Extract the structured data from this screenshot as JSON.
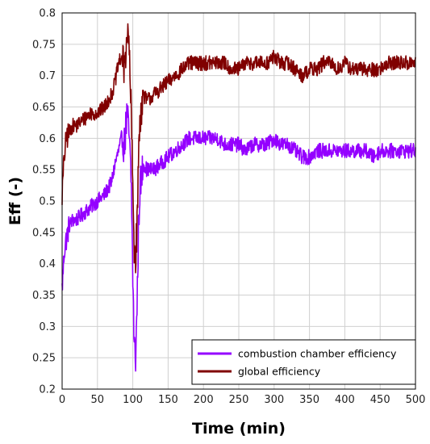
{
  "chart_data": {
    "type": "line",
    "xlabel": "Time (min)",
    "ylabel": "Eff (-)",
    "xlim": [
      0,
      500
    ],
    "ylim": [
      0.2,
      0.8
    ],
    "x_ticks": [
      "0",
      "50",
      "100",
      "150",
      "200",
      "250",
      "300",
      "350",
      "400",
      "450",
      "500"
    ],
    "y_ticks": [
      "0.2",
      "0.25",
      "0.3",
      "0.35",
      "0.4",
      "0.45",
      "0.5",
      "0.55",
      "0.6",
      "0.65",
      "0.7",
      "0.75",
      "0.8"
    ],
    "grid": true,
    "legend_position": "bottom-right",
    "series": [
      {
        "name": "combustion chamber efficiency",
        "color": "#9400ff",
        "points": [
          [
            0,
            0.36
          ],
          [
            3,
            0.42
          ],
          [
            6,
            0.44
          ],
          [
            10,
            0.46
          ],
          [
            15,
            0.47
          ],
          [
            20,
            0.47
          ],
          [
            30,
            0.48
          ],
          [
            40,
            0.49
          ],
          [
            50,
            0.5
          ],
          [
            60,
            0.51
          ],
          [
            70,
            0.53
          ],
          [
            75,
            0.56
          ],
          [
            80,
            0.58
          ],
          [
            84,
            0.6
          ],
          [
            88,
            0.59
          ],
          [
            92,
            0.64
          ],
          [
            95,
            0.6
          ],
          [
            98,
            0.52
          ],
          [
            100,
            0.38
          ],
          [
            102,
            0.27
          ],
          [
            104,
            0.25
          ],
          [
            106,
            0.33
          ],
          [
            108,
            0.45
          ],
          [
            110,
            0.52
          ],
          [
            115,
            0.56
          ],
          [
            120,
            0.55
          ],
          [
            130,
            0.55
          ],
          [
            140,
            0.56
          ],
          [
            150,
            0.57
          ],
          [
            160,
            0.58
          ],
          [
            170,
            0.59
          ],
          [
            180,
            0.6
          ],
          [
            190,
            0.6
          ],
          [
            200,
            0.6
          ],
          [
            210,
            0.6
          ],
          [
            220,
            0.6
          ],
          [
            230,
            0.59
          ],
          [
            240,
            0.59
          ],
          [
            250,
            0.59
          ],
          [
            260,
            0.58
          ],
          [
            270,
            0.59
          ],
          [
            280,
            0.59
          ],
          [
            290,
            0.59
          ],
          [
            300,
            0.6
          ],
          [
            310,
            0.59
          ],
          [
            320,
            0.59
          ],
          [
            330,
            0.58
          ],
          [
            340,
            0.57
          ],
          [
            350,
            0.57
          ],
          [
            360,
            0.58
          ],
          [
            370,
            0.58
          ],
          [
            380,
            0.58
          ],
          [
            390,
            0.58
          ],
          [
            400,
            0.58
          ],
          [
            410,
            0.58
          ],
          [
            420,
            0.58
          ],
          [
            430,
            0.58
          ],
          [
            440,
            0.57
          ],
          [
            450,
            0.58
          ],
          [
            460,
            0.58
          ],
          [
            470,
            0.58
          ],
          [
            480,
            0.58
          ],
          [
            490,
            0.58
          ],
          [
            500,
            0.58
          ]
        ]
      },
      {
        "name": "global efficiency",
        "color": "#800000",
        "points": [
          [
            0,
            0.51
          ],
          [
            3,
            0.57
          ],
          [
            6,
            0.6
          ],
          [
            10,
            0.61
          ],
          [
            15,
            0.62
          ],
          [
            20,
            0.62
          ],
          [
            30,
            0.63
          ],
          [
            40,
            0.64
          ],
          [
            50,
            0.64
          ],
          [
            60,
            0.65
          ],
          [
            70,
            0.67
          ],
          [
            75,
            0.69
          ],
          [
            80,
            0.72
          ],
          [
            84,
            0.73
          ],
          [
            88,
            0.71
          ],
          [
            92,
            0.77
          ],
          [
            95,
            0.74
          ],
          [
            98,
            0.63
          ],
          [
            100,
            0.52
          ],
          [
            102,
            0.43
          ],
          [
            104,
            0.41
          ],
          [
            106,
            0.46
          ],
          [
            108,
            0.56
          ],
          [
            110,
            0.63
          ],
          [
            115,
            0.67
          ],
          [
            120,
            0.66
          ],
          [
            130,
            0.67
          ],
          [
            140,
            0.68
          ],
          [
            150,
            0.69
          ],
          [
            160,
            0.7
          ],
          [
            170,
            0.71
          ],
          [
            180,
            0.72
          ],
          [
            190,
            0.72
          ],
          [
            200,
            0.72
          ],
          [
            210,
            0.72
          ],
          [
            220,
            0.72
          ],
          [
            230,
            0.72
          ],
          [
            240,
            0.71
          ],
          [
            250,
            0.71
          ],
          [
            260,
            0.72
          ],
          [
            270,
            0.72
          ],
          [
            280,
            0.72
          ],
          [
            290,
            0.72
          ],
          [
            300,
            0.73
          ],
          [
            310,
            0.72
          ],
          [
            320,
            0.72
          ],
          [
            330,
            0.71
          ],
          [
            340,
            0.7
          ],
          [
            350,
            0.71
          ],
          [
            360,
            0.71
          ],
          [
            370,
            0.72
          ],
          [
            380,
            0.72
          ],
          [
            390,
            0.71
          ],
          [
            400,
            0.72
          ],
          [
            410,
            0.71
          ],
          [
            420,
            0.71
          ],
          [
            430,
            0.71
          ],
          [
            440,
            0.71
          ],
          [
            450,
            0.71
          ],
          [
            460,
            0.72
          ],
          [
            470,
            0.72
          ],
          [
            480,
            0.72
          ],
          [
            490,
            0.72
          ],
          [
            500,
            0.72
          ]
        ]
      }
    ]
  }
}
